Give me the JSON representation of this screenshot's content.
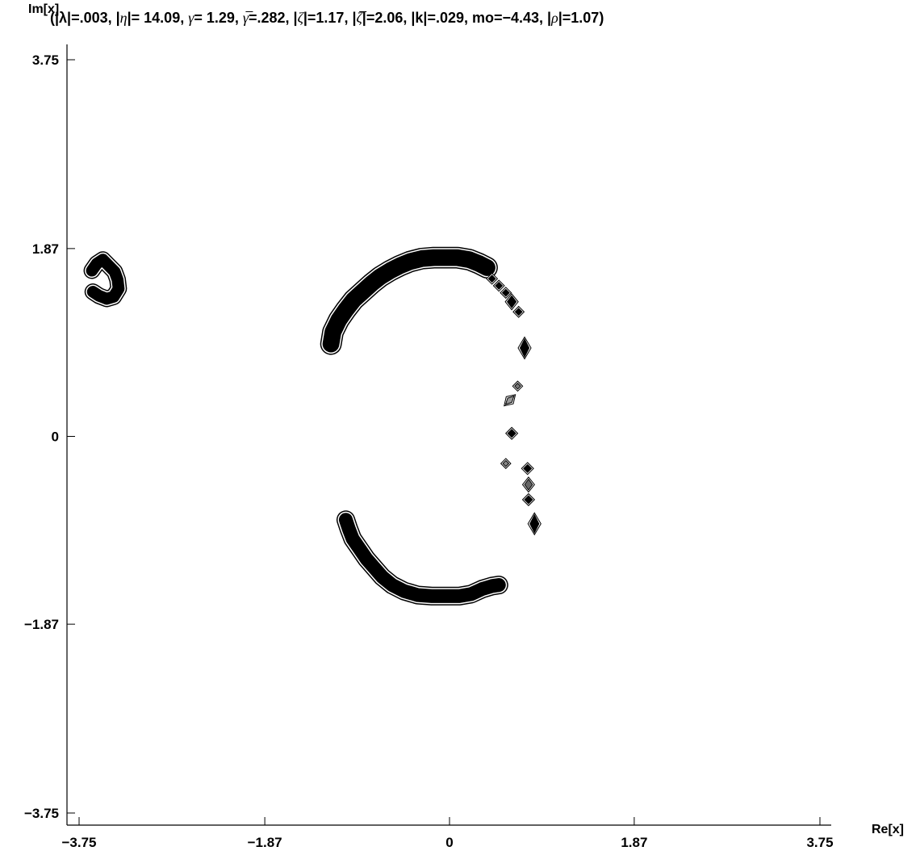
{
  "chart_data": {
    "type": "contour",
    "title_parts": [
      {
        "text": "(|",
        "style": "b"
      },
      {
        "text": "λ",
        "style": "b"
      },
      {
        "text": "|=.003, |",
        "style": "b"
      },
      {
        "text": "η",
        "style": "i"
      },
      {
        "text": "|= 14.09, ",
        "style": "b"
      },
      {
        "text": "γ",
        "style": "i"
      },
      {
        "text": "= 1.29, ",
        "style": "b"
      },
      {
        "text": "γ̅",
        "style": "i"
      },
      {
        "text": "=.282, |",
        "style": "b"
      },
      {
        "text": "ζ",
        "style": "i"
      },
      {
        "text": "|=1.17, |",
        "style": "b"
      },
      {
        "text": "ζ̅",
        "style": "i"
      },
      {
        "text": "|=2.06, |k|=.029, mo=−4.43, |",
        "style": "b"
      },
      {
        "text": "ρ",
        "style": "i"
      },
      {
        "text": "|=1.07)",
        "style": "b"
      }
    ],
    "xlabel": "Re[x]",
    "ylabel": "Im[x]",
    "xlim": [
      -3.75,
      3.75
    ],
    "ylim": [
      -3.75,
      3.75
    ],
    "x_ticks": [
      -3.75,
      -1.87,
      0,
      1.87,
      3.75
    ],
    "x_tick_labels": [
      "−3.75",
      "−1.87",
      "0",
      "1.87",
      "3.75"
    ],
    "y_ticks": [
      3.75,
      1.87,
      0,
      -1.87,
      -3.75
    ],
    "y_tick_labels": [
      "3.75",
      "1.87",
      "0",
      "−1.87",
      "−3.75"
    ],
    "grid": false,
    "series": [
      {
        "fill": "#000000",
        "width": 0.12,
        "points": [
          [
            -3.62,
            1.65
          ],
          [
            -3.57,
            1.72
          ],
          [
            -3.51,
            1.76
          ],
          [
            -3.45,
            1.7
          ],
          [
            -3.39,
            1.64
          ],
          [
            -3.36,
            1.56
          ],
          [
            -3.35,
            1.47
          ],
          [
            -3.4,
            1.39
          ],
          [
            -3.47,
            1.37
          ],
          [
            -3.55,
            1.4
          ],
          [
            -3.61,
            1.44
          ]
        ]
      },
      {
        "fill": "#000000",
        "width": 0.17,
        "points": [
          [
            -1.2,
            0.92
          ],
          [
            -1.18,
            1.04
          ],
          [
            -1.12,
            1.16
          ],
          [
            -1.05,
            1.26
          ],
          [
            -0.97,
            1.36
          ],
          [
            -0.88,
            1.44
          ],
          [
            -0.79,
            1.52
          ],
          [
            -0.7,
            1.59
          ],
          [
            -0.6,
            1.65
          ],
          [
            -0.5,
            1.7
          ],
          [
            -0.4,
            1.74
          ],
          [
            -0.28,
            1.77
          ],
          [
            -0.16,
            1.78
          ],
          [
            -0.04,
            1.78
          ],
          [
            0.08,
            1.78
          ],
          [
            0.2,
            1.76
          ],
          [
            0.3,
            1.72
          ],
          [
            0.38,
            1.68
          ]
        ]
      },
      {
        "fill": "#000000",
        "width": 0.14,
        "points": [
          [
            -1.05,
            -0.83
          ],
          [
            -1.02,
            -0.92
          ],
          [
            -0.98,
            -1.02
          ],
          [
            -0.91,
            -1.12
          ],
          [
            -0.84,
            -1.22
          ],
          [
            -0.76,
            -1.31
          ],
          [
            -0.68,
            -1.4
          ],
          [
            -0.58,
            -1.48
          ],
          [
            -0.46,
            -1.54
          ],
          [
            -0.32,
            -1.58
          ],
          [
            -0.18,
            -1.59
          ],
          [
            -0.04,
            -1.59
          ],
          [
            0.1,
            -1.59
          ],
          [
            0.22,
            -1.57
          ],
          [
            0.33,
            -1.52
          ],
          [
            0.43,
            -1.49
          ],
          [
            0.5,
            -1.48
          ]
        ]
      }
    ],
    "blobs": [
      {
        "x": 0.43,
        "y": 1.57,
        "rx": 0.035,
        "ry": 0.035,
        "fill": "#000000"
      },
      {
        "x": 0.5,
        "y": 1.5,
        "rx": 0.035,
        "ry": 0.035,
        "fill": "#000000"
      },
      {
        "x": 0.57,
        "y": 1.43,
        "rx": 0.035,
        "ry": 0.035,
        "fill": "#000000"
      },
      {
        "x": 0.63,
        "y": 1.34,
        "rx": 0.045,
        "ry": 0.06,
        "fill": "#000000"
      },
      {
        "x": 0.7,
        "y": 1.24,
        "rx": 0.035,
        "ry": 0.035,
        "fill": "#000000"
      },
      {
        "x": 0.76,
        "y": 0.88,
        "rx": 0.045,
        "ry": 0.09,
        "fill": "#000000"
      },
      {
        "x": 0.69,
        "y": 0.5,
        "rx": 0.03,
        "ry": 0.03,
        "fill": "#777777"
      },
      {
        "x": 0.61,
        "y": 0.36,
        "rx": 0.03,
        "ry": 0.06,
        "fill": "#999999",
        "rot": 45
      },
      {
        "x": 0.63,
        "y": 0.03,
        "rx": 0.04,
        "ry": 0.04,
        "fill": "#000000"
      },
      {
        "x": 0.57,
        "y": -0.27,
        "rx": 0.03,
        "ry": 0.03,
        "fill": "#888888"
      },
      {
        "x": 0.79,
        "y": -0.32,
        "rx": 0.04,
        "ry": 0.04,
        "fill": "#000000"
      },
      {
        "x": 0.8,
        "y": -0.48,
        "rx": 0.04,
        "ry": 0.055,
        "fill": "#666666"
      },
      {
        "x": 0.8,
        "y": -0.63,
        "rx": 0.04,
        "ry": 0.04,
        "fill": "#000000"
      },
      {
        "x": 0.86,
        "y": -0.87,
        "rx": 0.045,
        "ry": 0.09,
        "fill": "#000000"
      }
    ]
  }
}
